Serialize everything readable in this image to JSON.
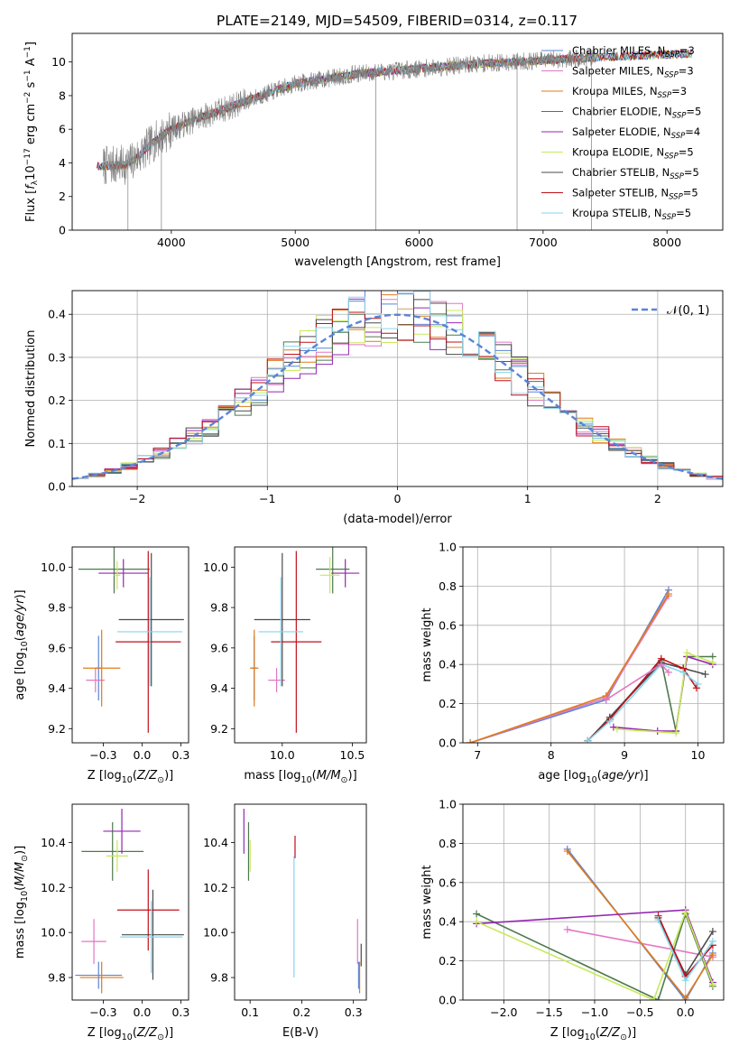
{
  "title": "PLATE=2149, MJD=54509, FIBERID=0314, z=0.117",
  "colors": {
    "Chabrier MILES": "#5b84d6",
    "Salpeter MILES": "#e377c2",
    "Kroupa MILES": "#e07b1a",
    "Chabrier ELODIE": "#4d7a4d",
    "Salpeter ELODIE": "#9427b0",
    "Kroupa ELODIE": "#c8e85a",
    "Chabrier STELIB": "#4a4a4a",
    "Salpeter STELIB": "#c0101a",
    "Kroupa STELIB": "#86d6ec",
    "data": "#808080",
    "normal": "#5b84d6"
  },
  "chart_data": [
    {
      "id": "spectrum",
      "type": "line",
      "xlabel": "wavelength [Angstrom, rest frame]",
      "ylabel": "Flux [f_λ 10^-17 erg cm^-2 s^-1 A^-1]",
      "xlim": [
        3200,
        8450
      ],
      "ylim": [
        0,
        11.7
      ],
      "xticks": [
        4000,
        5000,
        6000,
        7000,
        8000
      ],
      "yticks": [
        0,
        2,
        4,
        6,
        8,
        10
      ],
      "legend": "top-right",
      "legend_entries": [
        {
          "label": "Chabrier MILES, N",
          "sub": "SSP",
          "val": "=3"
        },
        {
          "label": "Salpeter MILES, N",
          "sub": "SSP",
          "val": "=3"
        },
        {
          "label": "Kroupa MILES, N",
          "sub": "SSP",
          "val": "=3"
        },
        {
          "label": "Chabrier ELODIE, N",
          "sub": "SSP",
          "val": "=5"
        },
        {
          "label": "Salpeter ELODIE, N",
          "sub": "SSP",
          "val": "=4"
        },
        {
          "label": "Kroupa ELODIE, N",
          "sub": "SSP",
          "val": "=5"
        },
        {
          "label": "Chabrier STELIB, N",
          "sub": "SSP",
          "val": "=5"
        },
        {
          "label": "Salpeter STELIB, N",
          "sub": "SSP",
          "val": "=5"
        },
        {
          "label": "Kroupa STELIB, N",
          "sub": "SSP",
          "val": "=5"
        }
      ],
      "data_range": [
        3450,
        7420
      ],
      "model_range": [
        3400,
        8200
      ],
      "continuum": [
        [
          3400,
          3.8
        ],
        [
          3650,
          3.9
        ],
        [
          3750,
          4.5
        ],
        [
          3850,
          5.2
        ],
        [
          4000,
          6.0
        ],
        [
          4200,
          6.6
        ],
        [
          4500,
          7.4
        ],
        [
          4800,
          8.2
        ],
        [
          5000,
          8.7
        ],
        [
          5500,
          9.3
        ],
        [
          6000,
          9.6
        ],
        [
          6500,
          9.9
        ],
        [
          7000,
          10.1
        ],
        [
          7500,
          10.3
        ],
        [
          8200,
          10.5
        ]
      ]
    },
    {
      "id": "residual-histogram",
      "type": "step",
      "xlabel": "(data-model)/error",
      "ylabel": "Normed distribution",
      "xlim": [
        -2.5,
        2.5
      ],
      "ylim": [
        0,
        0.455
      ],
      "xticks": [
        -2,
        -1,
        0,
        1,
        2
      ],
      "yticks": [
        0.0,
        0.1,
        0.2,
        0.3,
        0.4
      ],
      "bins": 40,
      "legend_label": "𝒩(0, 1)",
      "legend": "top-right",
      "normal": {
        "mu": 0,
        "sigma": 1
      }
    },
    {
      "id": "age-vs-metallicity",
      "type": "errorbar",
      "xlabel": "Z [log10(Z/Z⊙)]",
      "ylabel": "age [log10(age/yr)]",
      "xlim": [
        -0.45,
        0.3
      ],
      "ylim": [
        9.13,
        10.1
      ],
      "xticks": [
        -0.25,
        0.0,
        0.25
      ],
      "yticks": [
        9.2,
        9.4,
        9.6,
        9.8,
        10.0
      ],
      "points": [
        {
          "model": "Chabrier MILES",
          "x": -0.28,
          "xerr": 0.02,
          "y": 9.5,
          "yerr": 0.16
        },
        {
          "model": "Salpeter MILES",
          "x": -0.3,
          "xerr": 0.06,
          "y": 9.44,
          "yerr": 0.06
        },
        {
          "model": "Kroupa MILES",
          "x": -0.26,
          "xerr": 0.12,
          "y": 9.5,
          "yerr": 0.19
        },
        {
          "model": "Chabrier ELODIE",
          "x": -0.18,
          "xerr": 0.23,
          "y": 9.99,
          "yerr": 0.12
        },
        {
          "model": "Salpeter ELODIE",
          "x": -0.12,
          "xerr": 0.16,
          "y": 9.97,
          "yerr": 0.07
        },
        {
          "model": "Kroupa ELODIE",
          "x": -0.16,
          "xerr": 0.02,
          "y": 9.96,
          "yerr": 0.07
        },
        {
          "model": "Chabrier STELIB",
          "x": 0.06,
          "xerr": 0.21,
          "y": 9.74,
          "yerr": 0.33
        },
        {
          "model": "Salpeter STELIB",
          "x": 0.04,
          "xerr": 0.21,
          "y": 9.63,
          "yerr": 0.45
        },
        {
          "model": "Kroupa STELIB",
          "x": 0.05,
          "xerr": 0.21,
          "y": 9.68,
          "yerr": 0.27
        }
      ]
    },
    {
      "id": "age-vs-mass",
      "type": "errorbar",
      "xlabel": "mass [log10(M/M⊙)]",
      "ylabel": "",
      "xlim": [
        9.66,
        10.6
      ],
      "ylim": [
        9.13,
        10.1
      ],
      "xticks": [
        10.0,
        10.5
      ],
      "yticks": [
        9.2,
        9.4,
        9.6,
        9.8,
        10.0
      ],
      "points": [
        {
          "model": "Chabrier MILES",
          "x": 9.8,
          "xerr": 0.02,
          "y": 9.5,
          "yerr": 0.16
        },
        {
          "model": "Salpeter MILES",
          "x": 9.96,
          "xerr": 0.06,
          "y": 9.44,
          "yerr": 0.06
        },
        {
          "model": "Kroupa MILES",
          "x": 9.8,
          "xerr": 0.03,
          "y": 9.5,
          "yerr": 0.19
        },
        {
          "model": "Chabrier ELODIE",
          "x": 10.36,
          "xerr": 0.12,
          "y": 9.99,
          "yerr": 0.12
        },
        {
          "model": "Salpeter ELODIE",
          "x": 10.45,
          "xerr": 0.1,
          "y": 9.97,
          "yerr": 0.07
        },
        {
          "model": "Kroupa ELODIE",
          "x": 10.34,
          "xerr": 0.07,
          "y": 9.96,
          "yerr": 0.09
        },
        {
          "model": "Chabrier STELIB",
          "x": 10.0,
          "xerr": 0.2,
          "y": 9.74,
          "yerr": 0.33
        },
        {
          "model": "Salpeter STELIB",
          "x": 10.1,
          "xerr": 0.18,
          "y": 9.63,
          "yerr": 0.45
        },
        {
          "model": "Kroupa STELIB",
          "x": 9.99,
          "xerr": 0.16,
          "y": 9.68,
          "yerr": 0.27
        }
      ]
    },
    {
      "id": "mass-weight-vs-age",
      "type": "line",
      "xlabel": "age [log10(age/yr)]",
      "ylabel": "mass weight",
      "xlim": [
        6.8,
        10.35
      ],
      "ylim": [
        0,
        1.0
      ],
      "xticks": [
        7,
        8,
        9,
        10
      ],
      "yticks": [
        0.0,
        0.2,
        0.4,
        0.6,
        0.8,
        1.0
      ],
      "series": [
        {
          "model": "Chabrier MILES",
          "x": [
            6.9,
            8.75,
            9.6
          ],
          "y": [
            0.0,
            0.22,
            0.78
          ]
        },
        {
          "model": "Salpeter MILES",
          "x": [
            6.9,
            8.75,
            9.6
          ],
          "y": [
            0.0,
            0.23,
            0.75
          ]
        },
        {
          "model": "Kroupa MILES",
          "x": [
            6.9,
            8.75,
            9.6
          ],
          "y": [
            0.0,
            0.24,
            0.76
          ]
        },
        {
          "model": "Chabrier ELODIE",
          "x": [
            8.5,
            8.8,
            9.5,
            9.7,
            9.85,
            10.2
          ],
          "y": [
            0.01,
            0.13,
            0.42,
            0.06,
            0.44,
            0.44
          ]
        },
        {
          "model": "Salpeter ELODIE",
          "x": [
            8.85,
            9.45,
            9.7,
            9.85,
            10.2
          ],
          "y": [
            0.08,
            0.06,
            0.06,
            0.44,
            0.4
          ]
        },
        {
          "model": "Kroupa ELODIE",
          "x": [
            8.9,
            9.7,
            9.85,
            10.2
          ],
          "y": [
            0.07,
            0.05,
            0.46,
            0.41
          ]
        },
        {
          "model": "Chabrier STELIB",
          "x": [
            8.5,
            8.8,
            9.5,
            9.8,
            10.1
          ],
          "y": [
            0.01,
            0.13,
            0.41,
            0.38,
            0.35
          ]
        },
        {
          "model": "Salpeter STELIB",
          "x": [
            8.5,
            8.8,
            9.5,
            9.8,
            9.98
          ],
          "y": [
            0.01,
            0.12,
            0.43,
            0.38,
            0.28
          ]
        },
        {
          "model": "Kroupa STELIB",
          "x": [
            8.5,
            8.8,
            9.5,
            9.8,
            10.0
          ],
          "y": [
            0.01,
            0.11,
            0.4,
            0.36,
            0.3
          ]
        },
        {
          "model": "Salpeter MILES",
          "x": [
            8.75,
            9.5,
            9.6
          ],
          "y": [
            0.22,
            0.4,
            0.36
          ]
        }
      ]
    },
    {
      "id": "mass-vs-metallicity",
      "type": "errorbar",
      "xlabel": "Z [log10(Z/Z⊙)]",
      "ylabel": "mass [log10(M/M⊙)]",
      "xlim": [
        -0.45,
        0.3
      ],
      "ylim": [
        9.7,
        10.57
      ],
      "xticks": [
        -0.25,
        0.0,
        0.25
      ],
      "yticks": [
        9.8,
        10.0,
        10.2,
        10.4
      ],
      "points": [
        {
          "model": "Chabrier MILES",
          "x": -0.28,
          "xerr": 0.15,
          "y": 9.81,
          "yerr": 0.06
        },
        {
          "model": "Salpeter MILES",
          "x": -0.31,
          "xerr": 0.08,
          "y": 9.96,
          "yerr": 0.1
        },
        {
          "model": "Kroupa MILES",
          "x": -0.26,
          "xerr": 0.14,
          "y": 9.8,
          "yerr": 0.07
        },
        {
          "model": "Chabrier ELODIE",
          "x": -0.19,
          "xerr": 0.2,
          "y": 10.36,
          "yerr": 0.13
        },
        {
          "model": "Salpeter ELODIE",
          "x": -0.13,
          "xerr": 0.12,
          "y": 10.45,
          "yerr": 0.1
        },
        {
          "model": "Kroupa ELODIE",
          "x": -0.16,
          "xerr": 0.07,
          "y": 10.34,
          "yerr": 0.07
        },
        {
          "model": "Chabrier STELIB",
          "x": 0.07,
          "xerr": 0.2,
          "y": 9.99,
          "yerr": 0.2
        },
        {
          "model": "Salpeter STELIB",
          "x": 0.04,
          "xerr": 0.2,
          "y": 10.1,
          "yerr": 0.18
        },
        {
          "model": "Kroupa STELIB",
          "x": 0.06,
          "xerr": 0.2,
          "y": 9.98,
          "yerr": 0.16
        }
      ]
    },
    {
      "id": "mass-vs-extinction",
      "type": "errorbar",
      "xlabel": "E(B-V)",
      "ylabel": "",
      "xlim": [
        0.07,
        0.325
      ],
      "ylim": [
        9.7,
        10.57
      ],
      "xticks": [
        0.1,
        0.2,
        0.3
      ],
      "yticks": [
        9.8,
        10.0,
        10.2,
        10.4
      ],
      "points": [
        {
          "model": "Chabrier MILES",
          "x": 0.31,
          "xerr": 0.0,
          "y": 9.81,
          "yerr": 0.06
        },
        {
          "model": "Salpeter MILES",
          "x": 0.308,
          "xerr": 0.0,
          "y": 9.96,
          "yerr": 0.1
        },
        {
          "model": "Kroupa MILES",
          "x": 0.312,
          "xerr": 0.0,
          "y": 9.8,
          "yerr": 0.07
        },
        {
          "model": "Chabrier ELODIE",
          "x": 0.097,
          "xerr": 0.0,
          "y": 10.36,
          "yerr": 0.13
        },
        {
          "model": "Salpeter ELODIE",
          "x": 0.088,
          "xerr": 0.0,
          "y": 10.45,
          "yerr": 0.1
        },
        {
          "model": "Kroupa ELODIE",
          "x": 0.1,
          "xerr": 0.0,
          "y": 10.34,
          "yerr": 0.07
        },
        {
          "model": "Chabrier STELIB",
          "x": 0.315,
          "xerr": 0.0,
          "y": 9.9,
          "yerr": 0.05
        },
        {
          "model": "Salpeter STELIB",
          "x": 0.187,
          "xerr": 0.0,
          "y": 10.38,
          "yerr": 0.05
        },
        {
          "model": "Kroupa STELIB",
          "x": 0.185,
          "xerr": 0.0,
          "y": 10.07,
          "yerr": 0.27
        }
      ]
    },
    {
      "id": "mass-weight-vs-metallicity",
      "type": "line",
      "xlabel": "Z [log10(Z/Z⊙)]",
      "ylabel": "mass weight",
      "xlim": [
        -2.45,
        0.42
      ],
      "ylim": [
        0,
        1.0
      ],
      "xticks": [
        -2.0,
        -1.5,
        -1.0,
        -0.5,
        0.0
      ],
      "yticks": [
        0.0,
        0.2,
        0.4,
        0.6,
        0.8,
        1.0
      ],
      "series": [
        {
          "model": "Chabrier MILES",
          "x": [
            -1.3,
            0.0,
            0.3
          ],
          "y": [
            0.77,
            0.0,
            0.24
          ]
        },
        {
          "model": "Salpeter MILES",
          "x": [
            -1.3,
            0.3
          ],
          "y": [
            0.36,
            0.22
          ]
        },
        {
          "model": "Kroupa MILES",
          "x": [
            -1.3,
            0.0,
            0.3
          ],
          "y": [
            0.76,
            0.01,
            0.23
          ]
        },
        {
          "model": "Chabrier ELODIE",
          "x": [
            -2.3,
            -0.3,
            0.0,
            0.3
          ],
          "y": [
            0.44,
            0.0,
            0.44,
            0.07
          ]
        },
        {
          "model": "Salpeter ELODIE",
          "x": [
            -2.3,
            0.0,
            0.3
          ],
          "y": [
            0.39,
            0.46,
            0.09
          ]
        },
        {
          "model": "Kroupa ELODIE",
          "x": [
            -2.3,
            -0.35,
            0.0,
            0.3
          ],
          "y": [
            0.4,
            0.0,
            0.45,
            0.08
          ]
        },
        {
          "model": "Chabrier STELIB",
          "x": [
            -0.3,
            0.0,
            0.3
          ],
          "y": [
            0.42,
            0.13,
            0.35
          ]
        },
        {
          "model": "Salpeter STELIB",
          "x": [
            -0.3,
            0.0,
            0.3
          ],
          "y": [
            0.43,
            0.12,
            0.28
          ]
        },
        {
          "model": "Kroupa STELIB",
          "x": [
            -0.3,
            0.0,
            0.3
          ],
          "y": [
            0.41,
            0.1,
            0.3
          ]
        }
      ]
    }
  ]
}
